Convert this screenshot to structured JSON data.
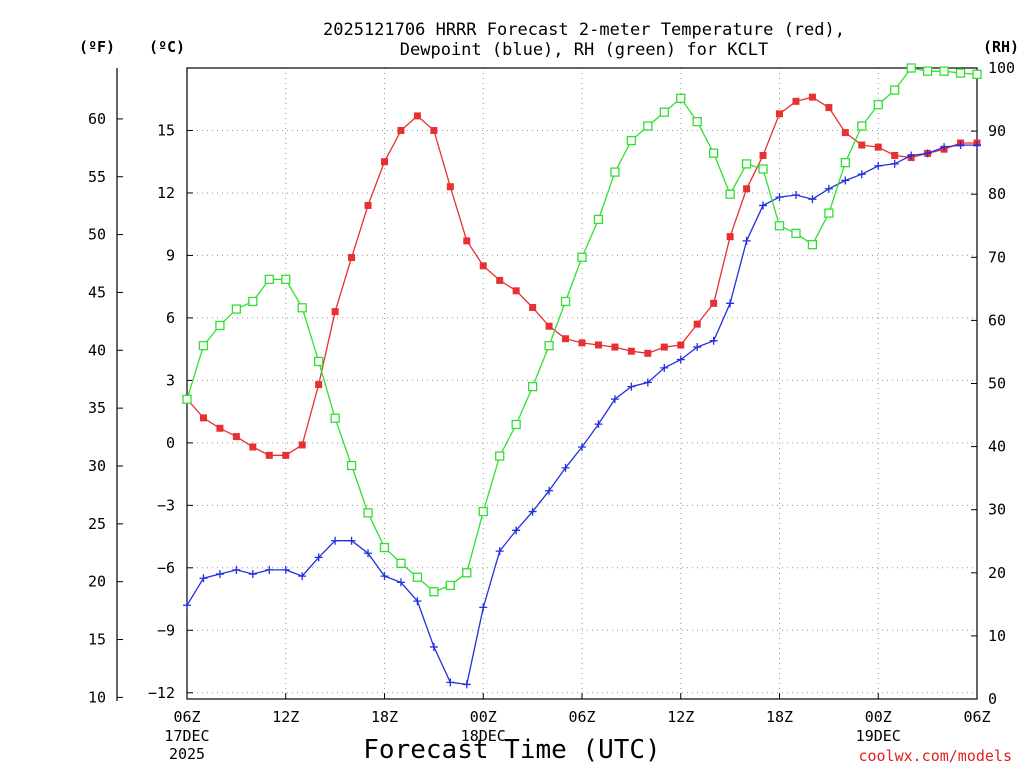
{
  "title_line1": "2025121706 HRRR Forecast 2-meter Temperature (red),",
  "title_line2": "Dewpoint (blue), RH (green) for KCLT",
  "unit_f": "(ºF)",
  "unit_c": "(ºC)",
  "unit_rh": "(RH)",
  "credit": "coolwx.com/models",
  "chart_data": {
    "type": "line",
    "title": "2025121706 HRRR Forecast 2-meter Temperature (red), Dewpoint (blue), RH (green) for KCLT",
    "xlabel": "Forecast Time (UTC)",
    "x_hours": [
      0,
      1,
      2,
      3,
      4,
      5,
      6,
      7,
      8,
      9,
      10,
      11,
      12,
      13,
      14,
      15,
      16,
      17,
      18,
      19,
      20,
      21,
      22,
      23,
      24,
      25,
      26,
      27,
      28,
      29,
      30,
      31,
      32,
      33,
      34,
      35,
      36,
      37,
      38,
      39,
      40,
      41,
      42,
      43,
      44,
      45,
      46,
      47,
      48
    ],
    "xlim": [
      0,
      48
    ],
    "x_ticks": [
      {
        "hour": 0,
        "label": "06Z",
        "sub1": "17DEC",
        "sub2": "2025"
      },
      {
        "hour": 6,
        "label": "12Z",
        "sub1": "",
        "sub2": ""
      },
      {
        "hour": 12,
        "label": "18Z",
        "sub1": "",
        "sub2": ""
      },
      {
        "hour": 18,
        "label": "00Z",
        "sub1": "18DEC",
        "sub2": ""
      },
      {
        "hour": 24,
        "label": "06Z",
        "sub1": "",
        "sub2": ""
      },
      {
        "hour": 30,
        "label": "12Z",
        "sub1": "",
        "sub2": ""
      },
      {
        "hour": 36,
        "label": "18Z",
        "sub1": "",
        "sub2": ""
      },
      {
        "hour": 42,
        "label": "00Z",
        "sub1": "19DEC",
        "sub2": ""
      },
      {
        "hour": 48,
        "label": "06Z",
        "sub1": "",
        "sub2": ""
      }
    ],
    "y_left_c": {
      "label": "(ºC)",
      "ylim": [
        -12.3,
        18.0
      ],
      "ticks": [
        -12,
        -9,
        -6,
        -3,
        0,
        3,
        6,
        9,
        12,
        15
      ],
      "tick_labels": [
        "−12",
        "−9",
        "−6",
        "−3",
        "0",
        "3",
        "6",
        "9",
        "12",
        "15"
      ]
    },
    "y_left_f": {
      "label": "(ºF)",
      "ticks": [
        10,
        15,
        20,
        25,
        30,
        35,
        40,
        45,
        50,
        55,
        60
      ],
      "tick_labels": [
        "10",
        "15",
        "20",
        "25",
        "30",
        "35",
        "40",
        "45",
        "50",
        "55",
        "60"
      ]
    },
    "y_right_rh": {
      "label": "(RH)",
      "ylim": [
        0,
        100
      ],
      "ticks": [
        0,
        10,
        20,
        30,
        40,
        50,
        60,
        70,
        80,
        90,
        100
      ],
      "tick_labels": [
        "0",
        "10",
        "20",
        "30",
        "40",
        "50",
        "60",
        "70",
        "80",
        "90",
        "100"
      ]
    },
    "series": [
      {
        "name": "Temperature",
        "axis": "celsius",
        "color": "#e83030",
        "marker": "filled-square",
        "values": [
          2.1,
          1.2,
          0.7,
          0.3,
          -0.2,
          -0.6,
          -0.6,
          -0.1,
          2.8,
          6.3,
          8.9,
          11.4,
          13.5,
          15.0,
          15.7,
          15.0,
          12.3,
          9.7,
          8.5,
          7.8,
          7.3,
          6.5,
          5.6,
          5.0,
          4.8,
          4.7,
          4.6,
          4.4,
          4.3,
          4.6,
          4.7,
          5.7,
          6.7,
          9.9,
          12.2,
          13.8,
          15.8,
          16.4,
          16.6,
          16.1,
          14.9,
          14.3,
          14.2,
          13.8,
          13.7,
          13.9,
          14.1,
          14.4,
          14.4
        ]
      },
      {
        "name": "Dewpoint",
        "axis": "celsius",
        "color": "#2030e0",
        "marker": "plus",
        "values": [
          -7.8,
          -6.5,
          -6.3,
          -6.1,
          -6.3,
          -6.1,
          -6.1,
          -6.4,
          -5.5,
          -4.7,
          -4.7,
          -5.3,
          -6.4,
          -6.7,
          -7.6,
          -9.8,
          -11.5,
          -11.6,
          -7.9,
          -5.2,
          -4.2,
          -3.3,
          -2.3,
          -1.2,
          -0.2,
          0.9,
          2.1,
          2.7,
          2.9,
          3.6,
          4.0,
          4.6,
          4.9,
          6.7,
          9.7,
          11.4,
          11.8,
          11.9,
          11.7,
          12.2,
          12.6,
          12.9,
          13.3,
          13.4,
          13.8,
          13.9,
          14.2,
          14.3,
          14.3
        ]
      },
      {
        "name": "RH",
        "axis": "rh",
        "color": "#30e030",
        "marker": "open-square",
        "values": [
          47.5,
          56.0,
          59.2,
          61.8,
          63.0,
          66.5,
          66.5,
          62.0,
          53.5,
          44.5,
          37.0,
          29.5,
          24.0,
          21.5,
          19.3,
          17.0,
          18.0,
          20.0,
          29.7,
          38.5,
          43.5,
          49.5,
          56.0,
          63.0,
          70.0,
          76.0,
          83.5,
          88.5,
          90.8,
          93.0,
          95.2,
          91.5,
          86.5,
          80.0,
          84.8,
          84.0,
          75.0,
          73.8,
          72.0,
          77.0,
          85.0,
          90.8,
          94.2,
          96.5,
          100.0,
          99.5,
          99.5,
          99.2,
          99.0
        ]
      }
    ]
  }
}
